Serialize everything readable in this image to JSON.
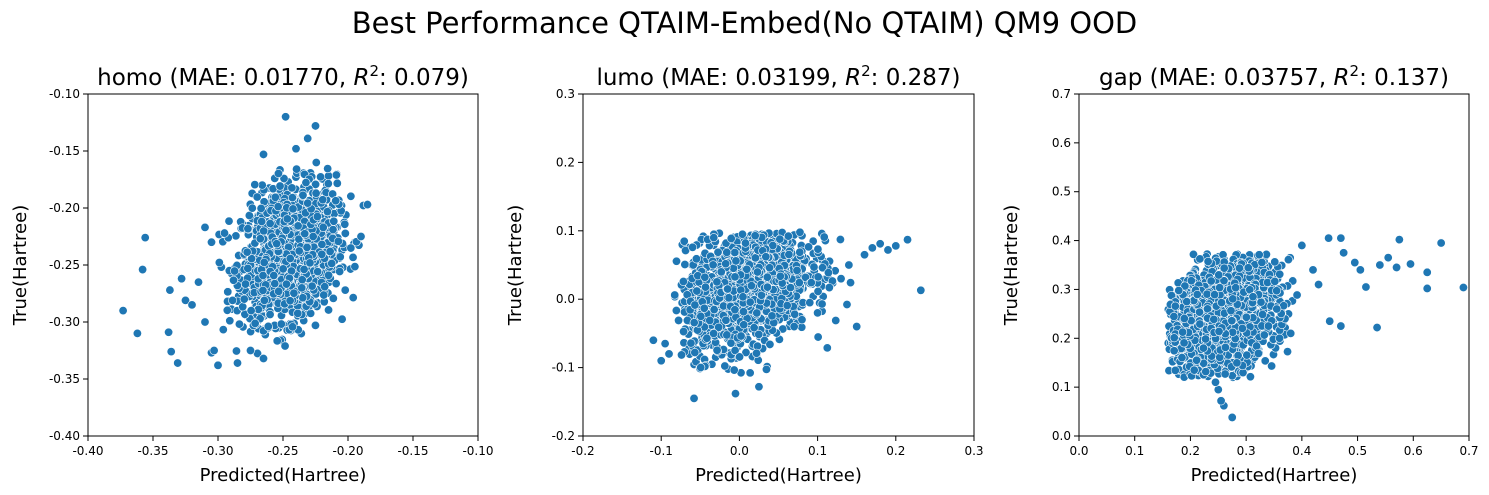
{
  "suptitle": "Best Performance QTAIM-Embed(No QTAIM) QM9 OOD",
  "chart_data": [
    {
      "type": "scatter",
      "title_prefix": "homo (MAE: 0.01770, ",
      "title_r2_value": ": 0.079)",
      "xlabel": "Predicted(Hartree)",
      "ylabel": "True(Hartree)",
      "xlim": [
        -0.4,
        -0.1
      ],
      "ylim": [
        -0.4,
        -0.1
      ],
      "xticks": [
        "-0.40",
        "-0.35",
        "-0.30",
        "-0.25",
        "-0.20",
        "-0.15",
        "-0.10"
      ],
      "yticks": [
        "-0.40",
        "-0.35",
        "-0.30",
        "-0.25",
        "-0.20",
        "-0.15",
        "-0.10"
      ],
      "color": "#1f77b4",
      "cloud": {
        "center": [
          -0.245,
          -0.24
        ],
        "sd": [
          0.018,
          0.028
        ],
        "n": 1600,
        "xrange": [
          -0.3,
          -0.183
        ],
        "yrange": [
          -0.33,
          -0.155
        ]
      },
      "outliers": [
        [
          -0.373,
          -0.29
        ],
        [
          -0.362,
          -0.31
        ],
        [
          -0.358,
          -0.254
        ],
        [
          -0.356,
          -0.226
        ],
        [
          -0.338,
          -0.309
        ],
        [
          -0.336,
          -0.326
        ],
        [
          -0.331,
          -0.336
        ],
        [
          -0.337,
          -0.272
        ],
        [
          -0.328,
          -0.262
        ],
        [
          -0.325,
          -0.281
        ],
        [
          -0.32,
          -0.285
        ],
        [
          -0.315,
          -0.265
        ],
        [
          -0.31,
          -0.3
        ],
        [
          -0.305,
          -0.327
        ],
        [
          -0.3,
          -0.338
        ],
        [
          -0.303,
          -0.325
        ],
        [
          -0.31,
          -0.217
        ],
        [
          -0.305,
          -0.23
        ],
        [
          -0.295,
          -0.222
        ],
        [
          -0.285,
          -0.336
        ],
        [
          -0.248,
          -0.12
        ],
        [
          -0.231,
          -0.139
        ],
        [
          -0.225,
          -0.128
        ],
        [
          -0.24,
          -0.148
        ],
        [
          -0.265,
          -0.153
        ],
        [
          -0.185,
          -0.197
        ],
        [
          -0.19,
          -0.225
        ],
        [
          -0.275,
          -0.325
        ],
        [
          -0.265,
          -0.332
        ]
      ]
    },
    {
      "type": "scatter",
      "title_prefix": "lumo (MAE: 0.03199, ",
      "title_r2_value": ": 0.287)",
      "xlabel": "Predicted(Hartree)",
      "ylabel": "True(Hartree)",
      "xlim": [
        -0.2,
        0.3
      ],
      "ylim": [
        -0.2,
        0.3
      ],
      "xticks": [
        "-0.2",
        "-0.1",
        "0.0",
        "0.1",
        "0.2",
        "0.3"
      ],
      "yticks": [
        "-0.2",
        "-0.1",
        "0.0",
        "0.1",
        "0.2",
        "0.3"
      ],
      "color": "#1f77b4",
      "cloud": {
        "center": [
          0.01,
          0.02
        ],
        "sd": [
          0.04,
          0.042
        ],
        "n": 1800,
        "xrange": [
          -0.085,
          0.15
        ],
        "yrange": [
          -0.11,
          0.098
        ]
      },
      "outliers": [
        [
          -0.11,
          -0.06
        ],
        [
          -0.1,
          -0.09
        ],
        [
          -0.058,
          -0.145
        ],
        [
          -0.005,
          -0.138
        ],
        [
          0.025,
          -0.128
        ],
        [
          0.15,
          -0.04
        ],
        [
          0.232,
          0.013
        ],
        [
          0.215,
          0.087
        ],
        [
          0.2,
          0.078
        ],
        [
          0.19,
          0.072
        ],
        [
          0.18,
          0.081
        ],
        [
          0.17,
          0.075
        ],
        [
          0.16,
          0.065
        ],
        [
          0.14,
          0.05
        ],
        [
          0.13,
          0.03
        ],
        [
          0.115,
          0.017
        ],
        [
          0.1,
          -0.02
        ],
        [
          0.09,
          -0.005
        ],
        [
          0.08,
          -0.03
        ],
        [
          0.07,
          -0.04
        ],
        [
          -0.095,
          -0.065
        ],
        [
          -0.09,
          -0.08
        ]
      ]
    },
    {
      "type": "scatter",
      "title_prefix": "gap (MAE: 0.03757, ",
      "title_r2_value": ": 0.137)",
      "xlabel": "Predicted(Hartree)",
      "ylabel": "True(Hartree)",
      "xlim": [
        0.0,
        0.7
      ],
      "ylim": [
        0.0,
        0.7
      ],
      "xticks": [
        "0.0",
        "0.1",
        "0.2",
        "0.3",
        "0.4",
        "0.5",
        "0.6",
        "0.7"
      ],
      "yticks": [
        "0.0",
        "0.1",
        "0.2",
        "0.3",
        "0.4",
        "0.5",
        "0.6",
        "0.7"
      ],
      "color": "#1f77b4",
      "cloud": {
        "center": [
          0.255,
          0.245
        ],
        "sd": [
          0.05,
          0.055
        ],
        "n": 1700,
        "xrange": [
          0.16,
          0.4
        ],
        "yrange": [
          0.12,
          0.375
        ]
      },
      "outliers": [
        [
          0.275,
          0.038
        ],
        [
          0.26,
          0.062
        ],
        [
          0.255,
          0.072
        ],
        [
          0.25,
          0.095
        ],
        [
          0.245,
          0.11
        ],
        [
          0.69,
          0.304
        ],
        [
          0.65,
          0.395
        ],
        [
          0.625,
          0.302
        ],
        [
          0.625,
          0.335
        ],
        [
          0.595,
          0.352
        ],
        [
          0.575,
          0.402
        ],
        [
          0.57,
          0.345
        ],
        [
          0.555,
          0.365
        ],
        [
          0.54,
          0.35
        ],
        [
          0.535,
          0.222
        ],
        [
          0.515,
          0.305
        ],
        [
          0.505,
          0.34
        ],
        [
          0.495,
          0.355
        ],
        [
          0.475,
          0.375
        ],
        [
          0.47,
          0.405
        ],
        [
          0.448,
          0.405
        ],
        [
          0.45,
          0.235
        ],
        [
          0.47,
          0.225
        ],
        [
          0.4,
          0.39
        ],
        [
          0.42,
          0.34
        ],
        [
          0.43,
          0.31
        ],
        [
          0.38,
          0.21
        ],
        [
          0.36,
          0.2
        ],
        [
          0.355,
          0.26
        ],
        [
          0.34,
          0.225
        ]
      ]
    }
  ]
}
